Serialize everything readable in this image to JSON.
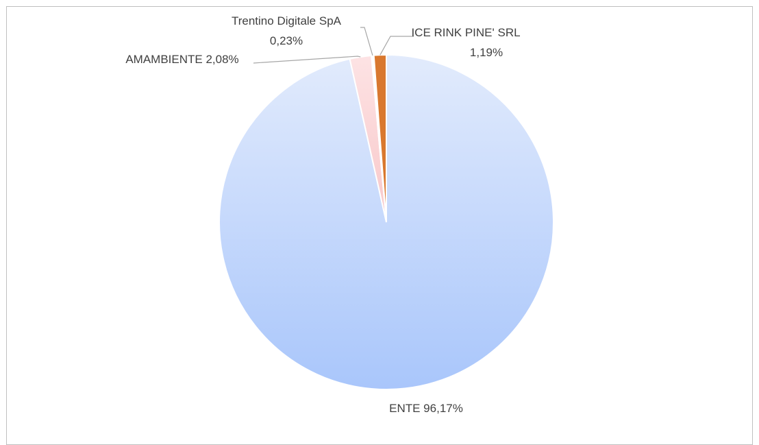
{
  "chart_data": {
    "type": "pie",
    "title": "",
    "slices": [
      {
        "name": "ENTE",
        "value": 96.17,
        "label_lines": [
          "ENTE 96,17%"
        ],
        "color": "#a9c6fb",
        "color_light": "#e2ebfc"
      },
      {
        "name": "AMAMBIENTE",
        "value": 2.08,
        "label_lines": [
          "AMAMBIENTE 2,08%"
        ],
        "color": "#f8c7c9",
        "color_light": "#fde3e4"
      },
      {
        "name": "Trentino Digitale SpA",
        "value": 0.23,
        "label_lines": [
          "Trentino Digitale SpA",
          "0,23%"
        ],
        "color": "#ffffff",
        "color_light": "#ffffff"
      },
      {
        "name": "ICE RINK PINE' SRL",
        "value": 1.19,
        "label_lines": [
          "ICE RINK PINE' SRL",
          "1,19%"
        ],
        "color": "#d9782f",
        "color_light": "#d9782f"
      }
    ],
    "start_angle_deg": 0,
    "direction": "clockwise",
    "legend": "none",
    "data_labels": "outside with leader lines"
  }
}
